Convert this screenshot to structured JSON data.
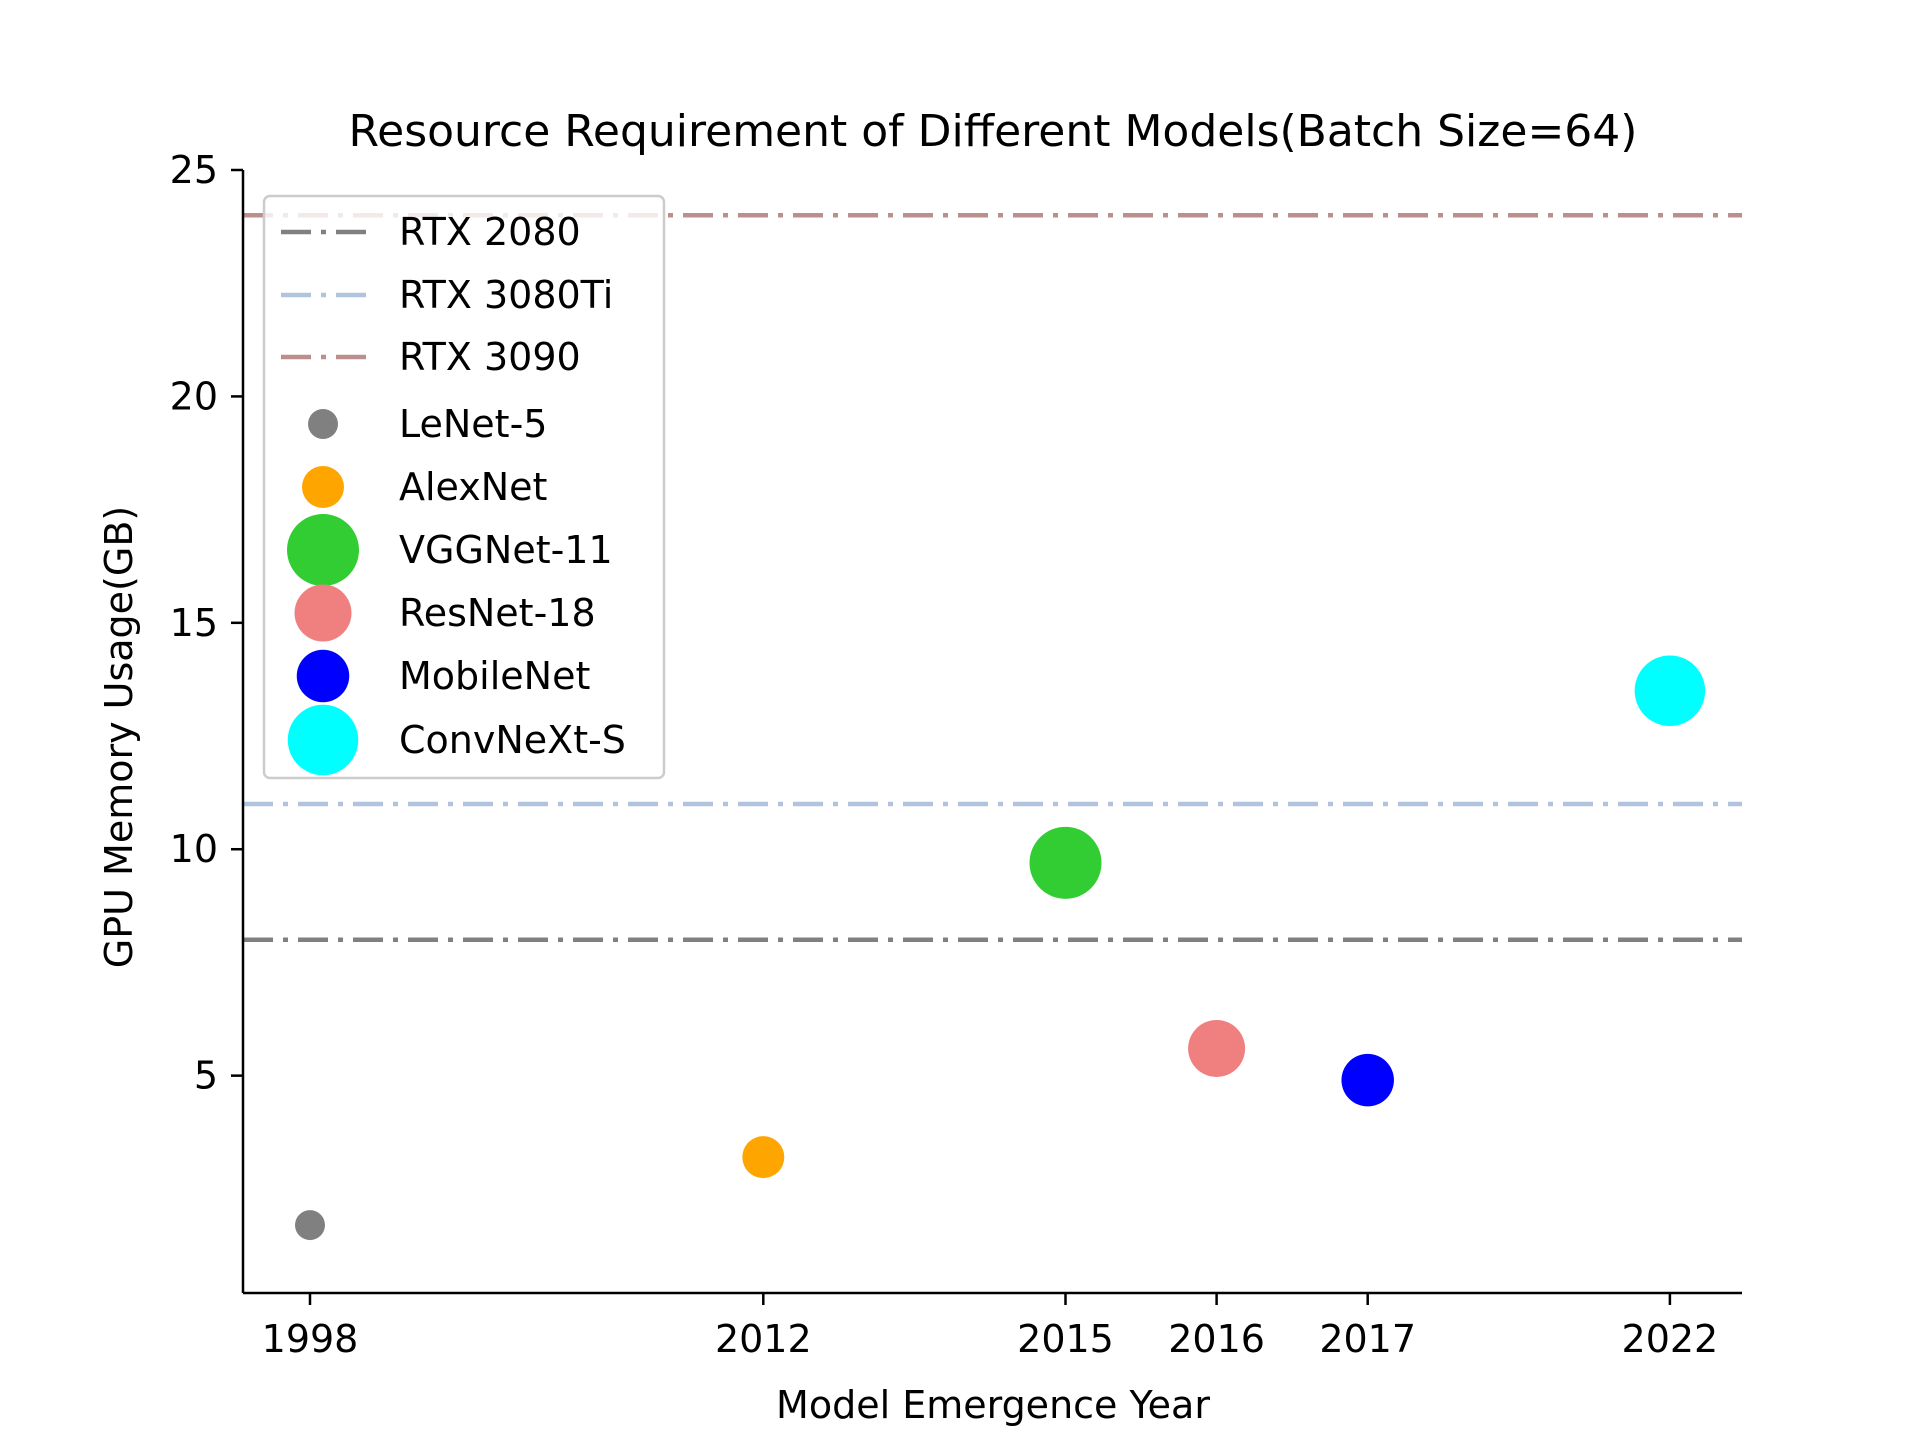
{
  "chart_data": {
    "type": "scatter",
    "title": "Resource Requirement of Different Models(Batch Size=64)",
    "xlabel": "Model Emergence Year",
    "ylabel": "GPU Memory Usage(GB)",
    "x_ticks": [
      1998,
      2012,
      2015,
      2016,
      2017,
      2022
    ],
    "x_tick_positions": [
      0,
      3,
      5,
      6,
      7,
      9
    ],
    "y_ticks": [
      5,
      10,
      15,
      20,
      25
    ],
    "ylim": [
      0.2,
      25.0
    ],
    "grid": false,
    "legend_position": "upper-left",
    "reference_lines": [
      {
        "name": "RTX 2080",
        "y": 8,
        "color": "#808080",
        "style": "dash-dot"
      },
      {
        "name": "RTX 3080Ti",
        "y": 11,
        "color": "#b0c4de",
        "style": "dash-dot"
      },
      {
        "name": "RTX 3090",
        "y": 24,
        "color": "#bc8f8f",
        "style": "dash-dot"
      }
    ],
    "series": [
      {
        "name": "LeNet-5",
        "x": 1998,
        "y": 1.7,
        "color": "#808080",
        "marker_size": 1.0
      },
      {
        "name": "AlexNet",
        "x": 2012,
        "y": 3.2,
        "color": "#ffa500",
        "marker_size": 1.4
      },
      {
        "name": "VGGNet-11",
        "x": 2015,
        "y": 9.7,
        "color": "#32cd32",
        "marker_size": 2.4
      },
      {
        "name": "ResNet-18",
        "x": 2016,
        "y": 5.6,
        "color": "#f08080",
        "marker_size": 1.9
      },
      {
        "name": "MobileNet",
        "x": 2017,
        "y": 4.9,
        "color": "#0000ff",
        "marker_size": 1.75
      },
      {
        "name": "ConvNeXt-S",
        "x": 2022,
        "y": 13.5,
        "color": "#00ffff",
        "marker_size": 2.35
      }
    ]
  }
}
